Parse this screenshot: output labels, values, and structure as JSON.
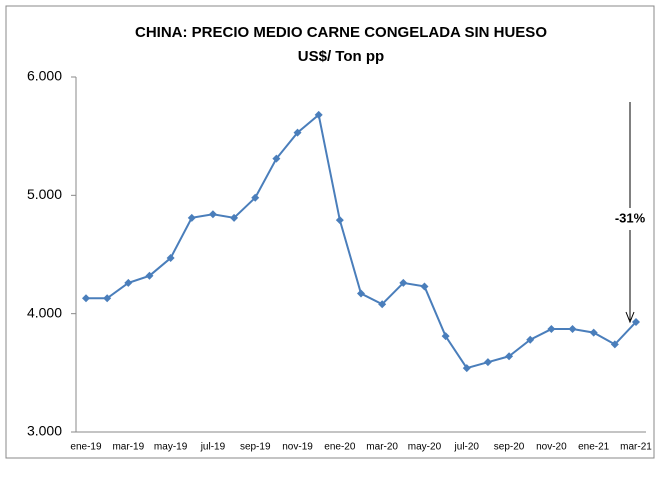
{
  "chart_data": {
    "type": "line",
    "title": "CHINA: PRECIO MEDIO CARNE CONGELADA SIN HUESO",
    "subtitle": "US$/ Ton pp",
    "annotation": "-31%",
    "categories": [
      "ene-19",
      null,
      "mar-19",
      null,
      "may-19",
      null,
      "jul-19",
      null,
      "sep-19",
      null,
      "nov-19",
      null,
      "ene-20",
      null,
      "mar-20",
      null,
      "may-20",
      null,
      "jul-20",
      null,
      "sep-20",
      null,
      "nov-20",
      null,
      "ene-21",
      null,
      "mar-21"
    ],
    "series": [
      {
        "name": "Precio medio",
        "color": "#4a7ebb",
        "values": [
          4130,
          4130,
          4260,
          4320,
          4470,
          4810,
          4840,
          4810,
          4980,
          5310,
          5530,
          5680,
          4790,
          4170,
          4080,
          4260,
          4230,
          3810,
          3540,
          3590,
          3640,
          3780,
          3870,
          3870,
          3840,
          3740,
          3930
        ]
      }
    ],
    "ylim": [
      3000,
      6000
    ],
    "yticks": [
      {
        "value": 3000,
        "label": "3.000"
      },
      {
        "value": 4000,
        "label": "4.000"
      },
      {
        "value": 5000,
        "label": "5.000"
      },
      {
        "value": 6000,
        "label": "6.000"
      }
    ],
    "grid": false
  }
}
